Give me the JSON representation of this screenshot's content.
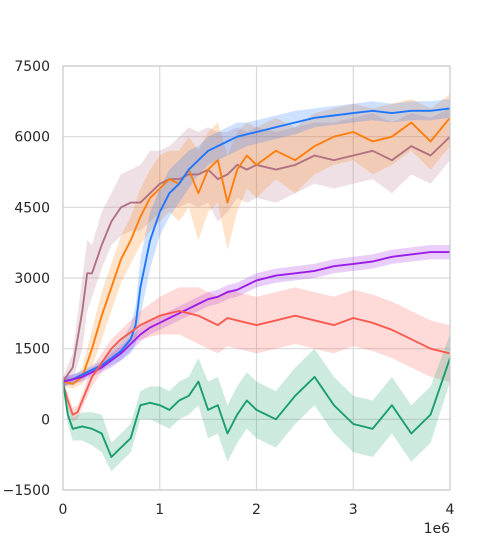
{
  "chart_data": {
    "type": "line",
    "title": "",
    "xlabel": "",
    "ylabel": "",
    "x_offset_label": "1e6",
    "xlim": [
      0,
      4000000
    ],
    "ylim": [
      -1500,
      7500
    ],
    "x_ticks": [
      0,
      1000000,
      2000000,
      3000000,
      4000000
    ],
    "x_tick_labels": [
      "0",
      "1",
      "2",
      "3",
      "4"
    ],
    "y_ticks": [
      -1500,
      0,
      1500,
      3000,
      4500,
      6000,
      7500
    ],
    "y_tick_labels": [
      "−1500",
      "0",
      "1500",
      "3000",
      "4500",
      "6000",
      "7500"
    ],
    "grid": true,
    "series": [
      {
        "color": "#b07282",
        "x": [
          0,
          100000,
          200000,
          250000,
          300000,
          400000,
          500000,
          600000,
          700000,
          800000,
          900000,
          1000000,
          1100000,
          1200000,
          1300000,
          1400000,
          1500000,
          1600000,
          1700000,
          1800000,
          1900000,
          2000000,
          2200000,
          2400000,
          2600000,
          2800000,
          3000000,
          3200000,
          3400000,
          3600000,
          3800000,
          4000000
        ],
        "y": [
          800,
          1100,
          2300,
          3100,
          3100,
          3700,
          4200,
          4500,
          4600,
          4600,
          4800,
          5000,
          5100,
          5100,
          5200,
          5200,
          5300,
          5100,
          5200,
          5400,
          5300,
          5400,
          5300,
          5400,
          5600,
          5500,
          5600,
          5700,
          5500,
          5800,
          5600,
          6000
        ],
        "low": [
          700,
          800,
          1500,
          2300,
          2600,
          3200,
          3700,
          3900,
          4000,
          4000,
          4200,
          4400,
          4500,
          4500,
          4600,
          4500,
          4600,
          4200,
          4400,
          4700,
          4600,
          4700,
          4600,
          4800,
          5000,
          4900,
          5000,
          5100,
          4800,
          5200,
          5000,
          5500
        ],
        "high": [
          900,
          1400,
          3000,
          3800,
          3700,
          4400,
          4800,
          5200,
          5300,
          5400,
          5700,
          5700,
          5800,
          6000,
          6200,
          6100,
          6200,
          6100,
          6100,
          6200,
          6100,
          6200,
          6100,
          6200,
          6300,
          6300,
          6400,
          6500,
          6300,
          6500,
          6400,
          6600
        ]
      },
      {
        "color": "#ff7f0e",
        "x": [
          0,
          100000,
          200000,
          300000,
          400000,
          500000,
          600000,
          700000,
          800000,
          900000,
          1000000,
          1100000,
          1200000,
          1300000,
          1400000,
          1500000,
          1600000,
          1700000,
          1800000,
          1900000,
          2000000,
          2200000,
          2400000,
          2600000,
          2800000,
          3000000,
          3200000,
          3400000,
          3600000,
          3800000,
          4000000
        ],
        "y": [
          800,
          750,
          900,
          1500,
          2200,
          2800,
          3400,
          3800,
          4300,
          4700,
          4900,
          5100,
          5000,
          5300,
          4800,
          5300,
          5500,
          4600,
          5300,
          5600,
          5400,
          5700,
          5500,
          5800,
          6000,
          6100,
          5900,
          6000,
          6300,
          5900,
          6400
        ],
        "low": [
          700,
          650,
          750,
          1100,
          1700,
          2300,
          2900,
          3300,
          3700,
          4000,
          4200,
          4400,
          4200,
          4500,
          3800,
          4400,
          4600,
          3600,
          4400,
          4900,
          4700,
          5100,
          4800,
          5200,
          5400,
          5500,
          5200,
          5400,
          5700,
          5300,
          5800
        ],
        "high": [
          900,
          850,
          1100,
          1900,
          2700,
          3300,
          3900,
          4300,
          4900,
          5300,
          5600,
          5700,
          5700,
          6000,
          5700,
          6100,
          6300,
          5600,
          6100,
          6300,
          6200,
          6400,
          6200,
          6500,
          6600,
          6700,
          6600,
          6700,
          6800,
          6600,
          6900
        ]
      },
      {
        "color": "#1f77ff",
        "x": [
          0,
          100000,
          200000,
          300000,
          400000,
          500000,
          600000,
          700000,
          750000,
          800000,
          900000,
          1000000,
          1100000,
          1200000,
          1300000,
          1400000,
          1500000,
          1600000,
          1700000,
          1800000,
          1900000,
          2000000,
          2200000,
          2400000,
          2600000,
          2800000,
          3000000,
          3200000,
          3400000,
          3600000,
          3800000,
          4000000
        ],
        "y": [
          800,
          850,
          950,
          1050,
          1150,
          1300,
          1450,
          1700,
          2000,
          2800,
          3800,
          4400,
          4800,
          5000,
          5300,
          5500,
          5700,
          5800,
          5900,
          6000,
          6050,
          6100,
          6200,
          6300,
          6400,
          6450,
          6500,
          6550,
          6500,
          6550,
          6550,
          6600
        ],
        "low": [
          700,
          750,
          850,
          950,
          1050,
          1150,
          1250,
          1400,
          1600,
          2200,
          3200,
          3900,
          4300,
          4600,
          4900,
          5200,
          5400,
          5500,
          5600,
          5700,
          5800,
          5850,
          5950,
          6050,
          6200,
          6250,
          6300,
          6350,
          6300,
          6350,
          6350,
          6400
        ],
        "high": [
          900,
          950,
          1050,
          1150,
          1250,
          1450,
          1650,
          2000,
          2400,
          3400,
          4400,
          4900,
          5300,
          5500,
          5700,
          5800,
          6000,
          6100,
          6200,
          6300,
          6300,
          6350,
          6450,
          6550,
          6600,
          6650,
          6700,
          6750,
          6700,
          6750,
          6750,
          6800
        ]
      },
      {
        "color": "#9b1ee8",
        "x": [
          0,
          100000,
          200000,
          300000,
          400000,
          500000,
          600000,
          700000,
          800000,
          900000,
          1000000,
          1100000,
          1200000,
          1300000,
          1400000,
          1500000,
          1600000,
          1700000,
          1800000,
          1900000,
          2000000,
          2200000,
          2400000,
          2600000,
          2800000,
          3000000,
          3200000,
          3400000,
          3600000,
          3800000,
          4000000
        ],
        "y": [
          800,
          850,
          900,
          1000,
          1100,
          1250,
          1400,
          1600,
          1800,
          1950,
          2050,
          2150,
          2250,
          2350,
          2450,
          2550,
          2600,
          2700,
          2750,
          2850,
          2950,
          3050,
          3100,
          3150,
          3250,
          3300,
          3350,
          3450,
          3500,
          3550,
          3550
        ],
        "low": [
          700,
          750,
          800,
          900,
          1000,
          1100,
          1250,
          1450,
          1650,
          1800,
          1900,
          2000,
          2100,
          2200,
          2300,
          2400,
          2450,
          2550,
          2600,
          2700,
          2800,
          2900,
          2950,
          3000,
          3100,
          3150,
          3200,
          3300,
          3350,
          3400,
          3400
        ],
        "high": [
          900,
          950,
          1000,
          1100,
          1200,
          1400,
          1550,
          1750,
          1950,
          2100,
          2200,
          2300,
          2400,
          2500,
          2600,
          2700,
          2750,
          2850,
          2900,
          3000,
          3100,
          3200,
          3250,
          3300,
          3400,
          3450,
          3500,
          3600,
          3650,
          3700,
          3700
        ]
      },
      {
        "color": "#f95a50",
        "x": [
          0,
          50000,
          100000,
          150000,
          200000,
          300000,
          400000,
          500000,
          600000,
          700000,
          800000,
          900000,
          1000000,
          1100000,
          1200000,
          1300000,
          1400000,
          1500000,
          1600000,
          1700000,
          1800000,
          1900000,
          2000000,
          2200000,
          2400000,
          2600000,
          2800000,
          3000000,
          3200000,
          3400000,
          3600000,
          3800000,
          4000000
        ],
        "y": [
          750,
          400,
          100,
          150,
          400,
          900,
          1200,
          1500,
          1700,
          1850,
          2000,
          2100,
          2200,
          2250,
          2300,
          2250,
          2200,
          2100,
          2000,
          2150,
          2100,
          2050,
          2000,
          2100,
          2200,
          2100,
          2000,
          2150,
          2050,
          1900,
          1700,
          1500,
          1400
        ],
        "low": [
          650,
          250,
          -50,
          0,
          250,
          700,
          1000,
          1300,
          1500,
          1600,
          1700,
          1750,
          1800,
          1800,
          1800,
          1700,
          1600,
          1500,
          1400,
          1550,
          1500,
          1450,
          1400,
          1500,
          1600,
          1500,
          1400,
          1550,
          1450,
          1300,
          1100,
          900,
          800
        ],
        "high": [
          850,
          550,
          250,
          300,
          550,
          1100,
          1400,
          1700,
          1900,
          2100,
          2300,
          2450,
          2600,
          2700,
          2800,
          2800,
          2800,
          2700,
          2600,
          2750,
          2700,
          2650,
          2600,
          2700,
          2800,
          2700,
          2600,
          2750,
          2650,
          2500,
          2300,
          2100,
          2000
        ]
      },
      {
        "color": "#1a9e6e",
        "x": [
          0,
          50000,
          100000,
          200000,
          300000,
          400000,
          500000,
          600000,
          700000,
          800000,
          900000,
          1000000,
          1100000,
          1200000,
          1300000,
          1400000,
          1500000,
          1600000,
          1700000,
          1800000,
          1900000,
          2000000,
          2200000,
          2400000,
          2600000,
          2800000,
          3000000,
          3200000,
          3400000,
          3600000,
          3800000,
          4000000
        ],
        "y": [
          800,
          100,
          -200,
          -150,
          -200,
          -300,
          -800,
          -600,
          -400,
          300,
          350,
          300,
          200,
          400,
          500,
          800,
          200,
          300,
          -300,
          100,
          400,
          200,
          0,
          500,
          900,
          300,
          -100,
          -200,
          300,
          -300,
          100,
          1300
        ],
        "low": [
          700,
          -100,
          -450,
          -450,
          -550,
          -700,
          -1100,
          -900,
          -700,
          0,
          0,
          -100,
          -200,
          0,
          100,
          300,
          -400,
          -300,
          -900,
          -500,
          -200,
          -400,
          -600,
          -100,
          300,
          -300,
          -700,
          -800,
          -300,
          -900,
          -500,
          800
        ],
        "high": [
          900,
          300,
          50,
          150,
          150,
          100,
          -500,
          -300,
          -100,
          600,
          700,
          700,
          600,
          800,
          900,
          1300,
          800,
          900,
          300,
          700,
          1000,
          800,
          600,
          1100,
          1500,
          900,
          500,
          400,
          900,
          300,
          700,
          1800
        ]
      }
    ]
  }
}
